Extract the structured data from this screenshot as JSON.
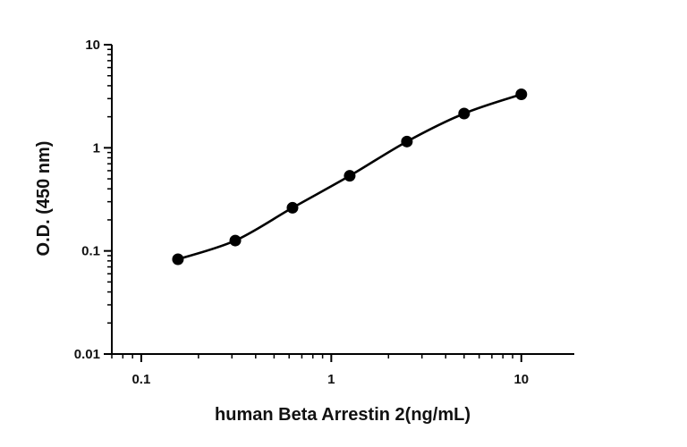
{
  "chart_data": {
    "type": "line",
    "title": "",
    "xlabel": "human Beta Arrestin 2(ng/mL)",
    "ylabel": "O.D. (450 nm)",
    "x_scale": "log",
    "y_scale": "log",
    "xlim": [
      0.07,
      19
    ],
    "ylim": [
      0.01,
      10
    ],
    "x_ticks": [
      0.1,
      1,
      10
    ],
    "x_tick_labels": [
      "0.1",
      "1",
      "10"
    ],
    "y_ticks": [
      0.01,
      0.1,
      1,
      10
    ],
    "y_tick_labels": [
      "0.01",
      "0.1",
      "1",
      "10"
    ],
    "grid": false,
    "legend": "none",
    "series": [
      {
        "x": [
          0.156,
          0.3125,
          0.625,
          1.25,
          2.5,
          5,
          10
        ],
        "y": [
          0.083,
          0.126,
          0.262,
          0.535,
          1.15,
          2.15,
          3.3
        ]
      }
    ],
    "colors": {
      "line": "#000000",
      "marker": "#000000",
      "axis": "#000000"
    }
  }
}
